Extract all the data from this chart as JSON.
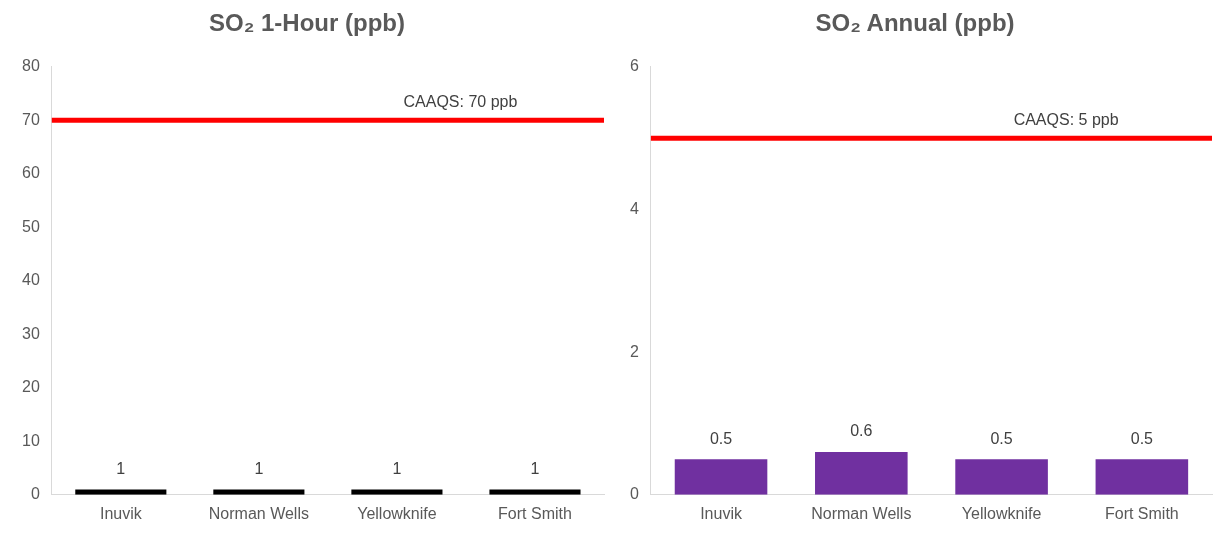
{
  "chart_data": [
    {
      "type": "bar",
      "title": "SO₂ 1-Hour (ppb)",
      "categories": [
        "Inuvik",
        "Norman Wells",
        "Yellowknife",
        "Fort Smith"
      ],
      "values": [
        1,
        1,
        1,
        1
      ],
      "color": "#000000",
      "ylim": [
        0,
        80
      ],
      "yticks": [
        0,
        10,
        20,
        30,
        40,
        50,
        60,
        70,
        80
      ],
      "grid": false,
      "legend": false,
      "data_labels": true,
      "ref_lines": [
        {
          "axis": "y",
          "value": 70,
          "label": "CAAQS: 70 ppb",
          "color": "#ff0000"
        }
      ]
    },
    {
      "type": "bar",
      "title": "SO₂ Annual (ppb)",
      "categories": [
        "Inuvik",
        "Norman Wells",
        "Yellowknife",
        "Fort Smith"
      ],
      "values": [
        0.5,
        0.6,
        0.5,
        0.5
      ],
      "color": "#7030a0",
      "ylim": [
        0,
        6
      ],
      "yticks": [
        0,
        2,
        4,
        6
      ],
      "grid": false,
      "legend": false,
      "data_labels": true,
      "ref_lines": [
        {
          "axis": "y",
          "value": 5,
          "label": "CAAQS: 5 ppb",
          "color": "#ff0000"
        }
      ]
    }
  ]
}
